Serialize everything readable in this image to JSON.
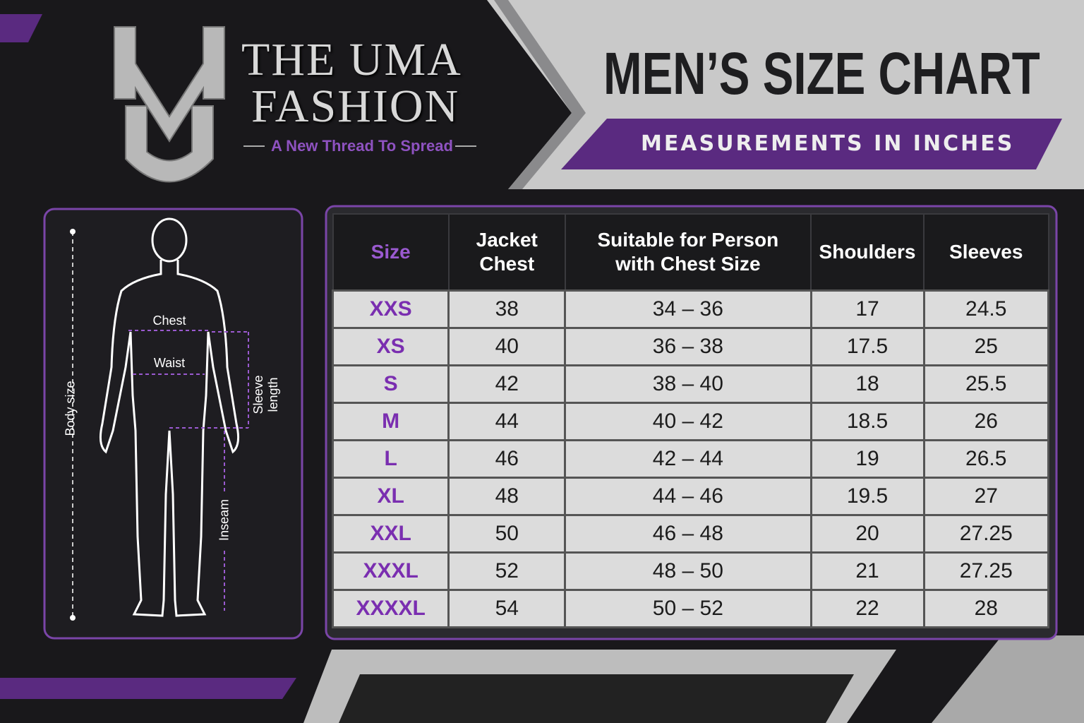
{
  "brand": {
    "name_line1": "THE UMA",
    "name_line2": "FASHION",
    "tagline": "A New Thread To Spread",
    "monogram": "UM"
  },
  "header": {
    "title": "MEN’S SIZE CHART",
    "subtitle": "MEASUREMENTS IN INCHES"
  },
  "figure": {
    "chest": "Chest",
    "waist": "Waist",
    "body_size": "Body size",
    "sleeve_length": "Sleeve length",
    "inseam": "Inseam"
  },
  "table": {
    "columns": [
      "Size",
      "Jacket Chest",
      "Suitable for Person with Chest Size",
      "Shoulders",
      "Sleeves"
    ],
    "rows": [
      [
        "XXS",
        38,
        "34 – 36",
        17,
        24.5
      ],
      [
        "XS",
        40,
        "36 – 38",
        17.5,
        25
      ],
      [
        "S",
        42,
        "38 – 40",
        18,
        25.5
      ],
      [
        "M",
        44,
        "40 – 42",
        18.5,
        26
      ],
      [
        "L",
        46,
        "42 – 44",
        19,
        26.5
      ],
      [
        "XL",
        48,
        "44 – 46",
        19.5,
        27
      ],
      [
        "XXL",
        50,
        "46 – 48",
        20,
        27.25
      ],
      [
        "XXXL",
        52,
        "48 – 50",
        21,
        27.25
      ],
      [
        "XXXXL",
        54,
        "50 – 52",
        22,
        28
      ]
    ]
  }
}
